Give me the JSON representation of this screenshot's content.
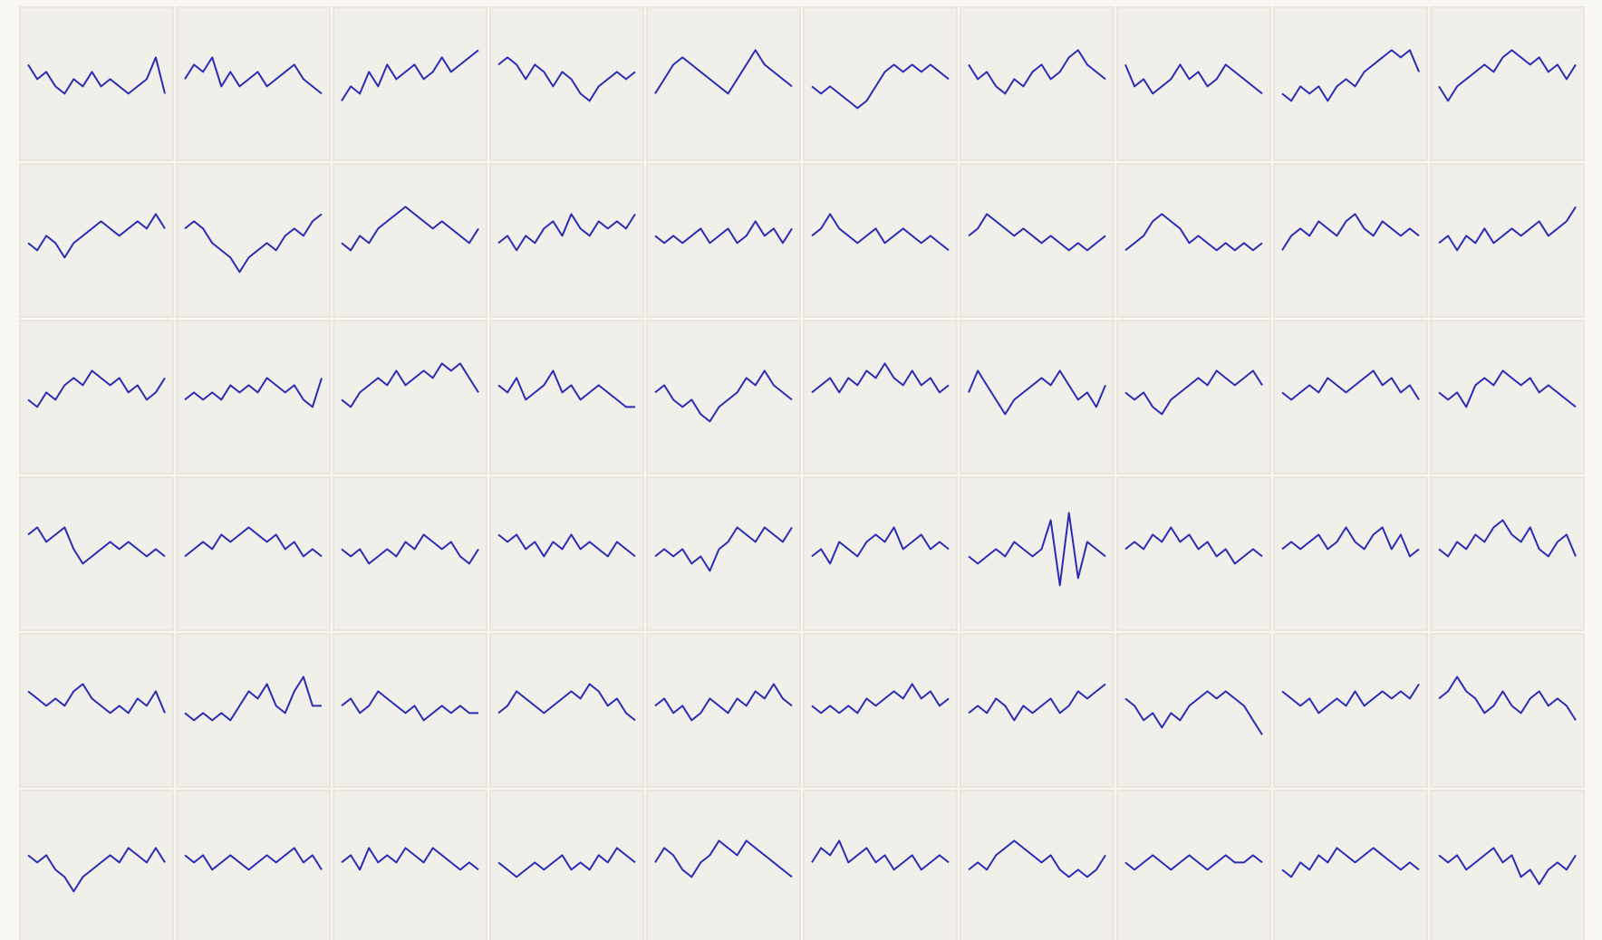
{
  "chart_data": {
    "type": "line",
    "color": "#2a2ab4",
    "series": [
      {
        "values": [
          2,
          0,
          1,
          -1,
          -2,
          0,
          -1,
          1,
          -1,
          0,
          -1,
          -2,
          -1,
          0,
          3,
          -2
        ]
      },
      {
        "values": [
          0,
          2,
          1,
          3,
          -1,
          1,
          -1,
          0,
          1,
          -1,
          0,
          1,
          2,
          0,
          -1,
          -2
        ]
      },
      {
        "values": [
          -3,
          -1,
          -2,
          1,
          -1,
          2,
          0,
          1,
          2,
          0,
          1,
          3,
          1,
          2,
          3,
          4
        ]
      },
      {
        "values": [
          2,
          3,
          2,
          0,
          2,
          1,
          -1,
          1,
          0,
          -2,
          -3,
          -1,
          0,
          1,
          0,
          1
        ]
      },
      {
        "values": [
          -2,
          0,
          2,
          3,
          2,
          1,
          0,
          -1,
          -2,
          0,
          2,
          4,
          2,
          1,
          0,
          -1
        ]
      },
      {
        "values": [
          -1,
          -2,
          -1,
          -2,
          -3,
          -4,
          -3,
          -1,
          1,
          2,
          1,
          2,
          1,
          2,
          1,
          0
        ]
      },
      {
        "values": [
          2,
          0,
          1,
          -1,
          -2,
          0,
          -1,
          1,
          2,
          0,
          1,
          3,
          4,
          2,
          1,
          0
        ]
      },
      {
        "values": [
          2,
          -1,
          0,
          -2,
          -1,
          0,
          2,
          0,
          1,
          -1,
          0,
          2,
          1,
          0,
          -1,
          -2
        ]
      },
      {
        "values": [
          -2,
          -3,
          -1,
          -2,
          -1,
          -3,
          -1,
          0,
          -1,
          1,
          2,
          3,
          4,
          3,
          4,
          1
        ]
      },
      {
        "values": [
          -1,
          -3,
          -1,
          0,
          1,
          2,
          1,
          3,
          4,
          3,
          2,
          3,
          1,
          2,
          0,
          2
        ]
      },
      {
        "values": [
          -1,
          -2,
          0,
          -1,
          -3,
          -1,
          0,
          1,
          2,
          1,
          0,
          1,
          2,
          1,
          3,
          1
        ]
      },
      {
        "values": [
          1,
          2,
          1,
          -1,
          -2,
          -3,
          -5,
          -3,
          -2,
          -1,
          -2,
          0,
          1,
          0,
          2,
          3
        ]
      },
      {
        "values": [
          -1,
          -2,
          0,
          -1,
          1,
          2,
          3,
          4,
          3,
          2,
          1,
          2,
          1,
          0,
          -1,
          1
        ]
      },
      {
        "values": [
          -1,
          0,
          -2,
          0,
          -1,
          1,
          2,
          0,
          3,
          1,
          0,
          2,
          1,
          2,
          1,
          3
        ]
      },
      {
        "values": [
          0,
          -1,
          0,
          -1,
          0,
          1,
          -1,
          0,
          1,
          -1,
          0,
          2,
          0,
          1,
          -1,
          1
        ]
      },
      {
        "values": [
          0,
          1,
          3,
          1,
          0,
          -1,
          0,
          1,
          -1,
          0,
          1,
          0,
          -1,
          0,
          -1,
          -2
        ]
      },
      {
        "values": [
          0,
          1,
          3,
          2,
          1,
          0,
          1,
          0,
          -1,
          0,
          -1,
          -2,
          -1,
          -2,
          -1,
          0
        ]
      },
      {
        "values": [
          -2,
          -1,
          0,
          2,
          3,
          2,
          1,
          -1,
          0,
          -1,
          -2,
          -1,
          -2,
          -1,
          -2,
          -1
        ]
      },
      {
        "values": [
          -2,
          0,
          1,
          0,
          2,
          1,
          0,
          2,
          3,
          1,
          0,
          2,
          1,
          0,
          1,
          0
        ]
      },
      {
        "values": [
          -1,
          0,
          -2,
          0,
          -1,
          1,
          -1,
          0,
          1,
          0,
          1,
          2,
          0,
          1,
          2,
          4
        ]
      },
      {
        "values": [
          -1,
          -2,
          0,
          -1,
          1,
          2,
          1,
          3,
          2,
          1,
          2,
          0,
          1,
          -1,
          0,
          2
        ]
      },
      {
        "values": [
          -1,
          0,
          -1,
          0,
          -1,
          1,
          0,
          1,
          0,
          2,
          1,
          0,
          1,
          -1,
          -2,
          2
        ]
      },
      {
        "values": [
          -1,
          -2,
          0,
          1,
          2,
          1,
          3,
          1,
          2,
          3,
          2,
          4,
          3,
          4,
          2,
          0
        ]
      },
      {
        "values": [
          1,
          0,
          2,
          -1,
          0,
          1,
          3,
          0,
          1,
          -1,
          0,
          1,
          0,
          -1,
          -2,
          -2
        ]
      },
      {
        "values": [
          0,
          1,
          -1,
          -2,
          -1,
          -3,
          -4,
          -2,
          -1,
          0,
          2,
          1,
          3,
          1,
          0,
          -1
        ]
      },
      {
        "values": [
          0,
          1,
          2,
          0,
          2,
          1,
          3,
          2,
          4,
          2,
          1,
          3,
          1,
          2,
          0,
          1
        ]
      },
      {
        "values": [
          0,
          3,
          1,
          -1,
          -3,
          -1,
          0,
          1,
          2,
          1,
          3,
          1,
          -1,
          0,
          -2,
          1
        ]
      },
      {
        "values": [
          0,
          -1,
          0,
          -2,
          -3,
          -1,
          0,
          1,
          2,
          1,
          3,
          2,
          1,
          2,
          3,
          1
        ]
      },
      {
        "values": [
          0,
          -1,
          0,
          1,
          0,
          2,
          1,
          0,
          1,
          2,
          3,
          1,
          2,
          0,
          1,
          -1
        ]
      },
      {
        "values": [
          0,
          -1,
          0,
          -2,
          1,
          2,
          1,
          3,
          2,
          1,
          2,
          0,
          1,
          0,
          -1,
          -2
        ]
      },
      {
        "values": [
          2,
          3,
          1,
          2,
          3,
          0,
          -2,
          -1,
          0,
          1,
          0,
          1,
          0,
          -1,
          0,
          -1
        ]
      },
      {
        "values": [
          -1,
          0,
          1,
          0,
          2,
          1,
          2,
          3,
          2,
          1,
          2,
          0,
          1,
          -1,
          0,
          -1
        ]
      },
      {
        "values": [
          0,
          -1,
          0,
          -2,
          -1,
          0,
          -1,
          1,
          0,
          2,
          1,
          0,
          1,
          -1,
          -2,
          0
        ]
      },
      {
        "values": [
          2,
          1,
          2,
          0,
          1,
          -1,
          1,
          0,
          2,
          0,
          1,
          0,
          -1,
          1,
          0,
          -1
        ]
      },
      {
        "values": [
          -1,
          0,
          -1,
          0,
          -2,
          -1,
          -3,
          0,
          1,
          3,
          2,
          1,
          3,
          2,
          1,
          3
        ]
      },
      {
        "values": [
          -1,
          0,
          -2,
          1,
          0,
          -1,
          1,
          2,
          1,
          3,
          0,
          1,
          2,
          0,
          1,
          0
        ]
      },
      {
        "values": [
          -1,
          -2,
          -1,
          0,
          -1,
          1,
          0,
          -1,
          0,
          4,
          -5,
          5,
          -4,
          1,
          0,
          -1
        ]
      },
      {
        "values": [
          0,
          1,
          0,
          2,
          1,
          3,
          1,
          2,
          0,
          1,
          -1,
          0,
          -2,
          -1,
          0,
          -1
        ]
      },
      {
        "values": [
          0,
          1,
          0,
          1,
          2,
          0,
          1,
          3,
          1,
          0,
          2,
          3,
          0,
          2,
          -1,
          0
        ]
      },
      {
        "values": [
          0,
          -1,
          1,
          0,
          2,
          1,
          3,
          4,
          2,
          1,
          3,
          0,
          -1,
          1,
          2,
          -1
        ]
      },
      {
        "values": [
          2,
          1,
          0,
          1,
          0,
          2,
          3,
          1,
          0,
          -1,
          0,
          -1,
          1,
          0,
          2,
          -1
        ]
      },
      {
        "values": [
          -1,
          -2,
          -1,
          -2,
          -1,
          -2,
          0,
          2,
          1,
          3,
          0,
          -1,
          2,
          4,
          0,
          0
        ]
      },
      {
        "values": [
          0,
          1,
          -1,
          0,
          2,
          1,
          0,
          -1,
          0,
          -2,
          -1,
          0,
          -1,
          0,
          -1,
          -1
        ]
      },
      {
        "values": [
          -1,
          0,
          2,
          1,
          0,
          -1,
          0,
          1,
          2,
          1,
          3,
          2,
          0,
          1,
          -1,
          -2
        ]
      },
      {
        "values": [
          0,
          1,
          -1,
          0,
          -2,
          -1,
          1,
          0,
          -1,
          1,
          0,
          2,
          1,
          3,
          1,
          0
        ]
      },
      {
        "values": [
          0,
          -1,
          0,
          -1,
          0,
          -1,
          1,
          0,
          1,
          2,
          1,
          3,
          1,
          2,
          0,
          1
        ]
      },
      {
        "values": [
          -1,
          0,
          -1,
          1,
          0,
          -2,
          0,
          -1,
          0,
          1,
          -1,
          0,
          2,
          1,
          2,
          3
        ]
      },
      {
        "values": [
          1,
          0,
          -2,
          -1,
          -3,
          -1,
          -2,
          0,
          1,
          2,
          1,
          2,
          1,
          0,
          -2,
          -4
        ]
      },
      {
        "values": [
          2,
          1,
          0,
          1,
          -1,
          0,
          1,
          0,
          2,
          0,
          1,
          2,
          1,
          2,
          1,
          3
        ]
      },
      {
        "values": [
          1,
          2,
          4,
          2,
          1,
          -1,
          0,
          2,
          0,
          -1,
          1,
          2,
          0,
          1,
          0,
          -2
        ]
      },
      {
        "values": [
          1,
          0,
          1,
          -1,
          -2,
          -4,
          -2,
          -1,
          0,
          1,
          0,
          2,
          1,
          0,
          2,
          0
        ]
      },
      {
        "values": [
          1,
          0,
          1,
          -1,
          0,
          1,
          0,
          -1,
          0,
          1,
          0,
          1,
          2,
          0,
          1,
          -1
        ]
      },
      {
        "values": [
          0,
          1,
          -1,
          2,
          0,
          1,
          0,
          2,
          1,
          0,
          2,
          1,
          0,
          -1,
          0,
          -1
        ]
      },
      {
        "values": [
          0,
          -1,
          -2,
          -1,
          0,
          -1,
          0,
          1,
          -1,
          0,
          -1,
          1,
          0,
          2,
          1,
          0
        ]
      },
      {
        "values": [
          0,
          2,
          1,
          -1,
          -2,
          0,
          1,
          3,
          2,
          1,
          3,
          2,
          1,
          0,
          -1,
          -2
        ]
      },
      {
        "values": [
          0,
          2,
          1,
          3,
          0,
          1,
          2,
          0,
          1,
          -1,
          0,
          1,
          -1,
          0,
          1,
          0
        ]
      },
      {
        "values": [
          -1,
          0,
          -1,
          1,
          2,
          3,
          2,
          1,
          0,
          1,
          -1,
          -2,
          -1,
          -2,
          -1,
          1
        ]
      },
      {
        "values": [
          0,
          -1,
          0,
          1,
          0,
          -1,
          0,
          1,
          0,
          -1,
          0,
          1,
          0,
          0,
          1,
          0
        ]
      },
      {
        "values": [
          -1,
          -2,
          0,
          -1,
          1,
          0,
          2,
          1,
          0,
          1,
          2,
          1,
          0,
          -1,
          0,
          -1
        ]
      },
      {
        "values": [
          1,
          0,
          1,
          -1,
          0,
          1,
          2,
          0,
          1,
          -2,
          -1,
          -3,
          -1,
          0,
          -1,
          1
        ]
      }
    ]
  }
}
